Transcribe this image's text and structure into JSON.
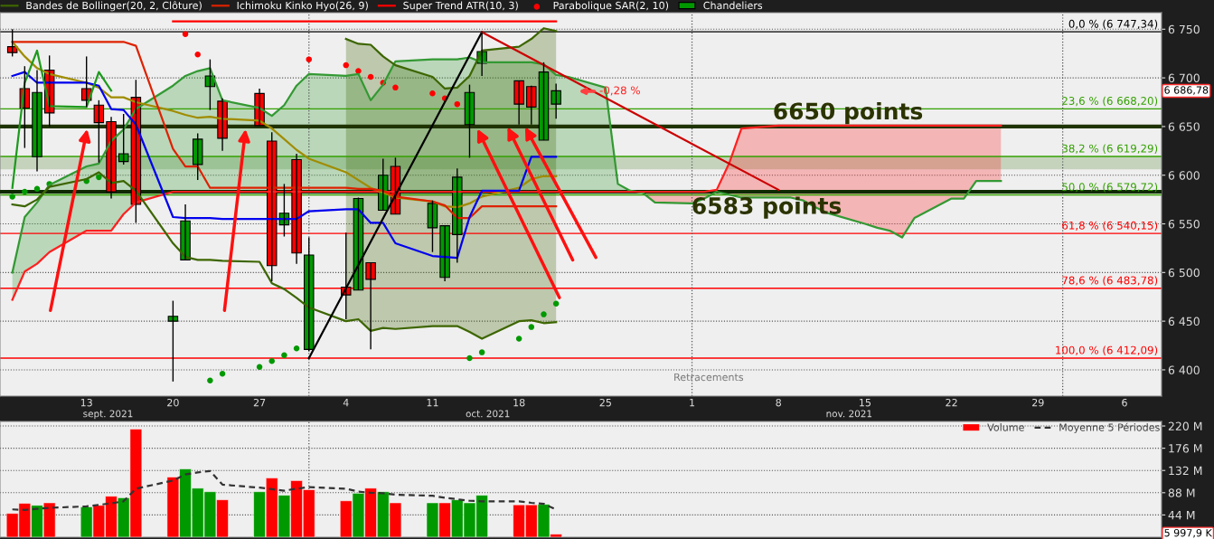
{
  "chart_data": [
    {
      "type": "candlestick",
      "x": [
        "2021-09-07",
        "2021-09-08",
        "2021-09-09",
        "2021-09-10",
        "2021-09-13",
        "2021-09-14",
        "2021-09-15",
        "2021-09-16",
        "2021-09-17",
        "2021-09-20",
        "2021-09-21",
        "2021-09-22",
        "2021-09-23",
        "2021-09-24",
        "2021-09-27",
        "2021-09-28",
        "2021-09-29",
        "2021-09-30",
        "2021-10-01",
        "2021-10-04",
        "2021-10-05",
        "2021-10-06",
        "2021-10-07",
        "2021-10-08",
        "2021-10-11",
        "2021-10-12",
        "2021-10-13",
        "2021-10-14",
        "2021-10-15",
        "2021-10-18",
        "2021-10-19",
        "2021-10-20",
        "2021-10-21"
      ],
      "xlim": [
        "2021-09-06",
        "2021-12-09"
      ],
      "xticks": [
        {
          "value": "2021-09-13",
          "label": "13"
        },
        {
          "value": "2021-09-20",
          "label": "20"
        },
        {
          "value": "2021-09-27",
          "label": "27"
        },
        {
          "value": "2021-10-04",
          "label": "4"
        },
        {
          "value": "2021-10-11",
          "label": "11"
        },
        {
          "value": "2021-10-18",
          "label": "18"
        },
        {
          "value": "2021-10-25",
          "label": "25"
        },
        {
          "value": "2021-11-01",
          "label": "1"
        },
        {
          "value": "2021-11-08",
          "label": "8"
        },
        {
          "value": "2021-11-15",
          "label": "15"
        },
        {
          "value": "2021-11-22",
          "label": "22"
        },
        {
          "value": "2021-11-29",
          "label": "29"
        },
        {
          "value": "2021-12-06",
          "label": "6"
        }
      ],
      "ylim": [
        6373,
        6767
      ],
      "yticks": [
        {
          "value": 6400,
          "label": "6 400"
        },
        {
          "value": 6450,
          "label": "6 450"
        },
        {
          "value": 6500,
          "label": "6 500"
        },
        {
          "value": 6550,
          "label": "6 550"
        },
        {
          "value": 6600,
          "label": "6 600"
        },
        {
          "value": 6650,
          "label": "6 650"
        },
        {
          "value": 6700,
          "label": "6 700"
        },
        {
          "value": 6750,
          "label": "6 750"
        }
      ],
      "grid": "y",
      "legend": "top left",
      "series": [
        {
          "type": "line",
          "color": "#339933",
          "x": [
            "2021-09-07",
            "2021-09-08",
            "2021-09-09",
            "2021-09-10",
            "2021-09-13",
            "2021-09-14",
            "2021-09-15",
            "2021-09-16",
            "2021-09-17",
            "2021-09-20",
            "2021-09-21",
            "2021-09-22",
            "2021-09-23",
            "2021-09-24",
            "2021-09-27",
            "2021-09-28",
            "2021-09-29",
            "2021-09-30",
            "2021-10-01",
            "2021-10-04",
            "2021-10-05",
            "2021-10-06",
            "2021-10-07",
            "2021-10-08",
            "2021-10-11",
            "2021-10-12",
            "2021-10-13",
            "2021-10-14",
            "2021-10-15",
            "2021-10-18",
            "2021-10-19",
            "2021-10-20",
            "2021-10-21",
            "2021-10-22",
            "2021-10-25",
            "2021-10-26",
            "2021-10-27",
            "2021-10-28",
            "2021-10-29",
            "2021-11-01",
            "2021-11-02",
            "2021-11-03",
            "2021-11-04",
            "2021-11-05",
            "2021-11-08",
            "2021-11-09",
            "2021-11-10",
            "2021-11-11",
            "2021-11-12",
            "2021-11-15",
            "2021-11-16",
            "2021-11-17",
            "2021-11-18",
            "2021-11-19",
            "2021-11-22",
            "2021-11-23",
            "2021-11-24",
            "2021-11-25",
            "2021-11-26"
          ],
          "values": [
            6500,
            6557,
            6572,
            6590,
            6609,
            6612,
            6635,
            6647,
            6668,
            6692,
            6702,
            6707,
            6710,
            6677,
            6669,
            6661,
            6672,
            6692,
            6704,
            6702,
            6704,
            6677,
            6693,
            6717,
            6719,
            6719,
            6719,
            6721,
            6716,
            6716,
            6716,
            6714,
            6703,
            6701,
            6690,
            6591,
            6584,
            6582,
            6572,
            6571,
            6576,
            6583,
            6580,
            6577,
            6577,
            6577,
            6574,
            6567,
            6561,
            6550,
            6546,
            6543,
            6536,
            6556,
            6576,
            6576,
            6594,
            6594,
            6594
          ],
          "lower": [
            6472,
            6501,
            6509,
            6521,
            6543,
            6543,
            6543,
            6560,
            6572,
            6583,
            6583,
            6583,
            6583,
            6583,
            6583,
            6583,
            6583,
            6583,
            6583,
            6583,
            6583,
            6583,
            6583,
            6583,
            6583,
            6583,
            6583,
            6583,
            6583,
            6583,
            6583,
            6583,
            6583,
            6583,
            6583,
            6583,
            6583,
            6583,
            null,
            null,
            null,
            null,
            null,
            null,
            null,
            null,
            null,
            null,
            null,
            null,
            null,
            null,
            null,
            null,
            null,
            null,
            null,
            null,
            null
          ],
          "upper": [
            6500,
            6557,
            6572,
            6590,
            6609,
            6612,
            6635,
            6647,
            6668,
            6692,
            6702,
            6707,
            6710,
            6677,
            6669,
            6661,
            6672,
            6692,
            6704,
            6702,
            6704,
            6677,
            6693,
            6717,
            6719,
            6719,
            6719,
            6721,
            6716,
            6716,
            6716,
            6714,
            6703,
            6701,
            6690,
            6591,
            6584,
            6582,
            null,
            null,
            null,
            null,
            null,
            null,
            null,
            null,
            null,
            null,
            null,
            null,
            null,
            null,
            null,
            null,
            null,
            null,
            null,
            null,
            null
          ]
        },
        {
          "type": "line",
          "color": "#ff2020",
          "x": [
            "2021-09-07",
            "2021-09-08",
            "2021-09-09",
            "2021-09-10",
            "2021-09-13",
            "2021-09-14",
            "2021-09-15",
            "2021-09-16",
            "2021-09-17",
            "2021-09-20",
            "2021-09-21",
            "2021-09-22",
            "2021-09-23",
            "2021-09-24",
            "2021-09-27",
            "2021-09-28",
            "2021-09-29",
            "2021-09-30",
            "2021-10-01",
            "2021-10-04",
            "2021-10-05",
            "2021-10-06",
            "2021-10-07",
            "2021-10-08",
            "2021-10-11",
            "2021-10-12",
            "2021-10-13",
            "2021-10-14",
            "2021-10-15",
            "2021-10-18",
            "2021-10-19",
            "2021-10-20",
            "2021-10-21",
            "2021-10-22",
            "2021-10-25",
            "2021-10-26",
            "2021-10-27",
            "2021-10-28",
            "2021-10-29",
            "2021-11-01",
            "2021-11-02",
            "2021-11-03",
            "2021-11-04",
            "2021-11-05",
            "2021-11-08",
            "2021-11-09",
            "2021-11-10",
            "2021-11-11",
            "2021-11-12",
            "2021-11-15",
            "2021-11-16",
            "2021-11-17",
            "2021-11-18",
            "2021-11-19",
            "2021-11-22",
            "2021-11-23",
            "2021-11-24",
            "2021-11-25",
            "2021-11-26"
          ],
          "values": [
            6472,
            6501,
            6509,
            6521,
            6543,
            6543,
            6543,
            6560,
            6572,
            6583,
            6583,
            6583,
            6583,
            6583,
            6583,
            6583,
            6583,
            6583,
            6583,
            6583,
            6583,
            6583,
            6583,
            6583,
            6583,
            6583,
            6583,
            6583,
            6583,
            6583,
            6583,
            6583,
            6583,
            6583,
            6583,
            6583,
            6583,
            6583,
            6583,
            6583,
            6583,
            6585,
            6612,
            6648,
            6651,
            6651,
            6651,
            6651,
            6651,
            6651,
            6651,
            6651,
            6651,
            6651,
            6651,
            6651,
            6651,
            6651,
            6651
          ],
          "lower": [
            null,
            null,
            null,
            null,
            null,
            null,
            null,
            null,
            null,
            null,
            null,
            null,
            null,
            null,
            null,
            null,
            null,
            null,
            null,
            null,
            null,
            null,
            null,
            null,
            null,
            null,
            null,
            null,
            null,
            null,
            null,
            null,
            null,
            null,
            null,
            null,
            6584,
            6582,
            6572,
            6571,
            6576,
            6583,
            6580,
            6577,
            6577,
            6577,
            6574,
            6567,
            6561,
            6550,
            6546,
            6543,
            6536,
            6556,
            6576,
            6576,
            6594,
            6594,
            6594
          ],
          "upper": [
            null,
            null,
            null,
            null,
            null,
            null,
            null,
            null,
            null,
            null,
            null,
            null,
            null,
            null,
            null,
            null,
            null,
            null,
            null,
            null,
            null,
            null,
            null,
            null,
            null,
            null,
            null,
            null,
            null,
            null,
            null,
            null,
            null,
            null,
            null,
            null,
            6583,
            6583,
            6583,
            6583,
            6583,
            6585,
            6612,
            6648,
            6651,
            6651,
            6651,
            6651,
            6651,
            6651,
            6651,
            6651,
            6651,
            6651,
            6651,
            6651,
            6651,
            6651,
            6651
          ]
        },
        {
          "name": "Bandes de Bollinger(20, 2, Clôture)",
          "type": "line",
          "color": "#3d6600",
          "values": [
            null,
            null,
            null,
            null,
            null,
            null,
            null,
            null,
            null,
            null,
            null,
            null,
            null,
            null,
            null,
            null,
            null,
            null,
            null,
            6740,
            6735,
            6734,
            6722,
            6713,
            6701,
            6689,
            6690,
            6702,
            6728,
            6732,
            6740,
            6751,
            6748
          ],
          "lower": [
            null,
            null,
            null,
            null,
            null,
            null,
            null,
            null,
            null,
            null,
            null,
            null,
            null,
            null,
            null,
            null,
            null,
            null,
            null,
            6450,
            6452,
            6440,
            6443,
            6442,
            6445,
            6445,
            6445,
            6439,
            6432,
            6450,
            6451,
            6448,
            6449
          ],
          "upper": [
            null,
            null,
            null,
            null,
            null,
            null,
            null,
            null,
            null,
            null,
            null,
            null,
            null,
            null,
            null,
            null,
            null,
            null,
            null,
            6740,
            6735,
            6734,
            6722,
            6713,
            6701,
            6689,
            6690,
            6702,
            6728,
            6732,
            6740,
            6751,
            6748
          ]
        },
        {
          "type": "line",
          "color": "#3d6600",
          "values": [
            6570,
            6568,
            6575,
            6588,
            6596,
            6603,
            6592,
            6594,
            6584,
            6530,
            6516,
            6513,
            6513,
            6512,
            6511,
            6489,
            6483,
            6474,
            6464,
            6450,
            6452,
            6440,
            6443,
            6442,
            6445,
            6445,
            6445,
            6439,
            6432,
            6450,
            6451,
            6448,
            6449
          ]
        },
        {
          "type": "line",
          "color": "#a08c00",
          "values": [
            6737,
            6722,
            6710,
            6704,
            6695,
            6690,
            6680,
            6680,
            6675,
            6666,
            6662,
            6659,
            6660,
            6658,
            6656,
            6648,
            6637,
            6626,
            6617,
            6603,
            6595,
            6587,
            6582,
            6577,
            6573,
            6568,
            6567,
            6571,
            6578,
            6587,
            6596,
            6599,
            6599
          ]
        },
        {
          "name": "Ichimoku Kinko Hyo(26, 9)",
          "type": "line",
          "color": "#dd2200",
          "values": [
            6737,
            6737,
            6737,
            6737,
            6737,
            6737,
            6737,
            6737,
            6733,
            6627,
            6609,
            6609,
            6587,
            6587,
            6587,
            6587,
            6587,
            6587,
            6587,
            6587,
            6586,
            6586,
            6584,
            6578,
            6573,
            6569,
            6556,
            6556,
            6568,
            6568,
            6568,
            6568,
            6568
          ]
        },
        {
          "type": "line",
          "color": "#0000ee",
          "values": [
            6702,
            6706,
            6695,
            6695,
            6695,
            6692,
            6668,
            6667,
            6652,
            6557,
            6556,
            6556,
            6556,
            6555,
            6555,
            6555,
            6555,
            6555,
            6563,
            6565,
            6565,
            6551,
            6551,
            6530,
            6517,
            6516,
            6515,
            6557,
            6584,
            6584,
            6619,
            6619,
            6619
          ]
        },
        {
          "type": "line",
          "color": "#1e9a1e",
          "values": [
            6587,
            6695,
            6728,
            6671,
            6670,
            6706,
            6687,
            null,
            null,
            null,
            null,
            null,
            null,
            null,
            null,
            null,
            null,
            null,
            null,
            null,
            null,
            null,
            null,
            null,
            null,
            null,
            null,
            null,
            null,
            null,
            null,
            null,
            null
          ]
        },
        {
          "name": "Super Trend ATR(10, 3)",
          "type": "line",
          "color": "#ff0000",
          "values": [
            null,
            null,
            null,
            null,
            null,
            null,
            null,
            null,
            null,
            6758,
            6758,
            6758,
            6758,
            6758,
            6758,
            6758,
            6758,
            6758,
            6758,
            6758,
            6758,
            6758,
            6758,
            6758,
            6758,
            6758,
            6758,
            6758,
            6758,
            6758,
            6758,
            6758,
            6758
          ]
        },
        {
          "name": "Parabolique SAR(2, 10)",
          "type": "scatter",
          "marker": "circle",
          "color": "#ff0000",
          "values": [
            null,
            null,
            null,
            null,
            null,
            null,
            null,
            null,
            null,
            null,
            6745,
            6724,
            null,
            null,
            null,
            null,
            null,
            null,
            6719,
            6713,
            6707,
            6701,
            6695,
            6690,
            6684,
            6679,
            6673,
            null,
            null,
            null,
            null,
            null,
            null
          ]
        },
        {
          "type": "scatter",
          "marker": "circle",
          "color": "#009900",
          "values": [
            6578,
            6583,
            6586,
            6591,
            6594,
            6598,
            null,
            null,
            null,
            null,
            null,
            null,
            6389,
            6396,
            6403,
            6409,
            6415,
            6422,
            null,
            null,
            null,
            null,
            null,
            null,
            null,
            null,
            null,
            6412,
            6418,
            6432,
            6444,
            6457,
            6468
          ]
        },
        {
          "type": "line",
          "color": "#000000",
          "x": [
            "2021-10-01",
            "2021-10-15"
          ],
          "values": [
            6412,
            6747
          ]
        },
        {
          "type": "line",
          "color": "#cc0000",
          "x": [
            "2021-10-15",
            "2021-11-08"
          ],
          "values": [
            6747,
            6585
          ]
        },
        {
          "name": "Chandeliers",
          "colors": [
            "#ff0000",
            "#ff0000",
            "#009900",
            "#ff0000",
            "#ff0000",
            "#ff0000",
            "#ff0000",
            "#009900",
            "#ff0000",
            "#009900",
            "#009900",
            "#009900",
            "#009900",
            "#ff0000",
            "#ff0000",
            "#ff0000",
            "#009900",
            "#ff0000",
            "#009900",
            "#ff0000",
            "#009900",
            "#ff0000",
            "#009900",
            "#ff0000",
            "#009900",
            "#009900",
            "#009900",
            "#009900",
            "#009900",
            "#ff0000",
            "#ff0000",
            "#009900",
            "#009900"
          ],
          "ohlc": [
            [
              6732,
              6750,
              6722,
              6726
            ],
            [
              6689,
              6712,
              6628,
              6669
            ],
            [
              6619,
              6708,
              6604,
              6685
            ],
            [
              6708,
              6723,
              6650,
              6664
            ],
            [
              6689,
              6722,
              6670,
              6677
            ],
            [
              6672,
              6677,
              6613,
              6654
            ],
            [
              6655,
              6660,
              6576,
              6583
            ],
            [
              6614,
              6663,
              6611,
              6622
            ],
            [
              6680,
              6698,
              6551,
              6570
            ],
            [
              6450,
              6471,
              6388,
              6455
            ],
            [
              6513,
              6570,
              6513,
              6553
            ],
            [
              6611,
              6643,
              6595,
              6637
            ],
            [
              6691,
              6719,
              6667,
              6702
            ],
            [
              6676,
              6679,
              6625,
              6638
            ],
            [
              6684,
              6689,
              6651,
              6651
            ],
            [
              6635,
              6644,
              6491,
              6507
            ],
            [
              6549,
              6591,
              6537,
              6561
            ],
            [
              6616,
              6622,
              6509,
              6520
            ],
            [
              6421,
              6536,
              6419,
              6518
            ],
            [
              6485,
              6541,
              6452,
              6477
            ],
            [
              6482,
              6577,
              6482,
              6576
            ],
            [
              6510,
              6510,
              6421,
              6493
            ],
            [
              6564,
              6617,
              6564,
              6600
            ],
            [
              6609,
              6618,
              6560,
              6560
            ],
            [
              6546,
              6574,
              6521,
              6571
            ],
            [
              6495,
              6548,
              6491,
              6548
            ],
            [
              6539,
              6607,
              6510,
              6598
            ],
            [
              6652,
              6693,
              6618,
              6685
            ],
            [
              6715,
              6747,
              6702,
              6727
            ],
            [
              6697,
              6697,
              6652,
              6673
            ],
            [
              6691,
              6692,
              6652,
              6670
            ],
            [
              6636,
              6716,
              6636,
              6706
            ],
            [
              6673,
              6694,
              6658,
              6686.78
            ]
          ]
        }
      ],
      "ref_lines": [
        {
          "axis": "y",
          "value": 6650,
          "label": "6650 points",
          "color": "#1f3300",
          "line_style": "solid"
        },
        {
          "axis": "y",
          "value": 6583,
          "label": "6583 points",
          "color": "#0f2a00",
          "line_style": "solid"
        },
        {
          "axis": "y",
          "value": 6747.34,
          "label": "0,0 % (6 747,34)",
          "color": "#000000"
        },
        {
          "axis": "y",
          "value": 6668.2,
          "label": "23,6 % (6 668,20)",
          "color": "#33a000"
        },
        {
          "axis": "y",
          "value": 6619.29,
          "label": "38,2 % (6 619,29)",
          "color": "#33a000"
        },
        {
          "axis": "y",
          "value": 6579.72,
          "label": "50,0 % (6 579,72)",
          "color": "#33a000"
        },
        {
          "axis": "y",
          "value": 6540.15,
          "label": "61,8 % (6 540,15)",
          "color": "#ff0000"
        },
        {
          "axis": "y",
          "value": 6483.78,
          "label": "78,6 % (6 483,78)",
          "color": "#ff0000"
        },
        {
          "axis": "y",
          "value": 6412.09,
          "label": "100,0 % (6 412,09)",
          "color": "#ff0000"
        },
        {
          "axis": "x",
          "value": "2021-10-01",
          "color": "#555555",
          "line_style": "dotted"
        },
        {
          "axis": "x",
          "value": "2021-11-01",
          "color": "#555555",
          "line_style": "dotted"
        },
        {
          "axis": "x",
          "value": "2021-12-01",
          "color": "#555555",
          "line_style": "dotted"
        }
      ],
      "bands": [
        {
          "axis": "y",
          "from": 6606,
          "to": 6619,
          "color": "#c5d3bd"
        }
      ],
      "annotations": [
        "-0,28 %",
        "6 686,78",
        "Retracements",
        "sept. 2021",
        "oct. 2021",
        "nov. 2021"
      ]
    },
    {
      "type": "bar",
      "x": [
        "2021-09-07",
        "2021-09-08",
        "2021-09-09",
        "2021-09-10",
        "2021-09-13",
        "2021-09-14",
        "2021-09-15",
        "2021-09-16",
        "2021-09-17",
        "2021-09-20",
        "2021-09-21",
        "2021-09-22",
        "2021-09-23",
        "2021-09-24",
        "2021-09-27",
        "2021-09-28",
        "2021-09-29",
        "2021-09-30",
        "2021-10-01",
        "2021-10-04",
        "2021-10-05",
        "2021-10-06",
        "2021-10-07",
        "2021-10-08",
        "2021-10-11",
        "2021-10-12",
        "2021-10-13",
        "2021-10-14",
        "2021-10-15",
        "2021-10-18",
        "2021-10-19",
        "2021-10-20",
        "2021-10-21"
      ],
      "xlim": [
        "2021-09-06",
        "2021-12-09"
      ],
      "ylim": [
        0,
        229
      ],
      "yticks": [
        {
          "value": 44,
          "label": "44 M"
        },
        {
          "value": 88,
          "label": "88 M"
        },
        {
          "value": 132,
          "label": "132 M"
        },
        {
          "value": 176,
          "label": "176 M"
        },
        {
          "value": 220,
          "label": "220 M"
        }
      ],
      "tick_labels": "y",
      "grid": "y",
      "legend": "top right",
      "series": [
        {
          "name": "Volume",
          "colors": [
            "#ff0000",
            "#ff0000",
            "#009900",
            "#ff0000",
            "#009900",
            "#ff0000",
            "#ff0000",
            "#009900",
            "#ff0000",
            "#ff0000",
            "#009900",
            "#009900",
            "#009900",
            "#ff0000",
            "#009900",
            "#ff0000",
            "#009900",
            "#ff0000",
            "#ff0000",
            "#ff0000",
            "#009900",
            "#ff0000",
            "#009900",
            "#ff0000",
            "#009900",
            "#ff0000",
            "#009900",
            "#009900",
            "#009900",
            "#ff0000",
            "#ff0000",
            "#009900",
            "#ff0000"
          ],
          "color": "#ff0000",
          "values": [
            47,
            67,
            63,
            68,
            60,
            63,
            81,
            78,
            214,
            119,
            135,
            97,
            90,
            74,
            90,
            117,
            83,
            112,
            94,
            72,
            87,
            97,
            90,
            68,
            68,
            68,
            74,
            68,
            83,
            64,
            64,
            65,
            6
          ]
        },
        {
          "name": "Moyenne 5 Périodes",
          "type": "line",
          "line_style": "dashed",
          "color": "#333333",
          "values": [
            55,
            54,
            56,
            58,
            61,
            64,
            67,
            71,
            96,
            112,
            124,
            128,
            131,
            104,
            98,
            95,
            92,
            96,
            99,
            96,
            90,
            88,
            87,
            84,
            82,
            78,
            75,
            72,
            71,
            71,
            68,
            66,
            55
          ]
        }
      ],
      "ref_lines": [
        {
          "axis": "x",
          "value": "2021-10-01",
          "color": "#555555",
          "line_style": "dotted"
        }
      ],
      "annotations": [
        "5 997,9 K"
      ]
    }
  ]
}
